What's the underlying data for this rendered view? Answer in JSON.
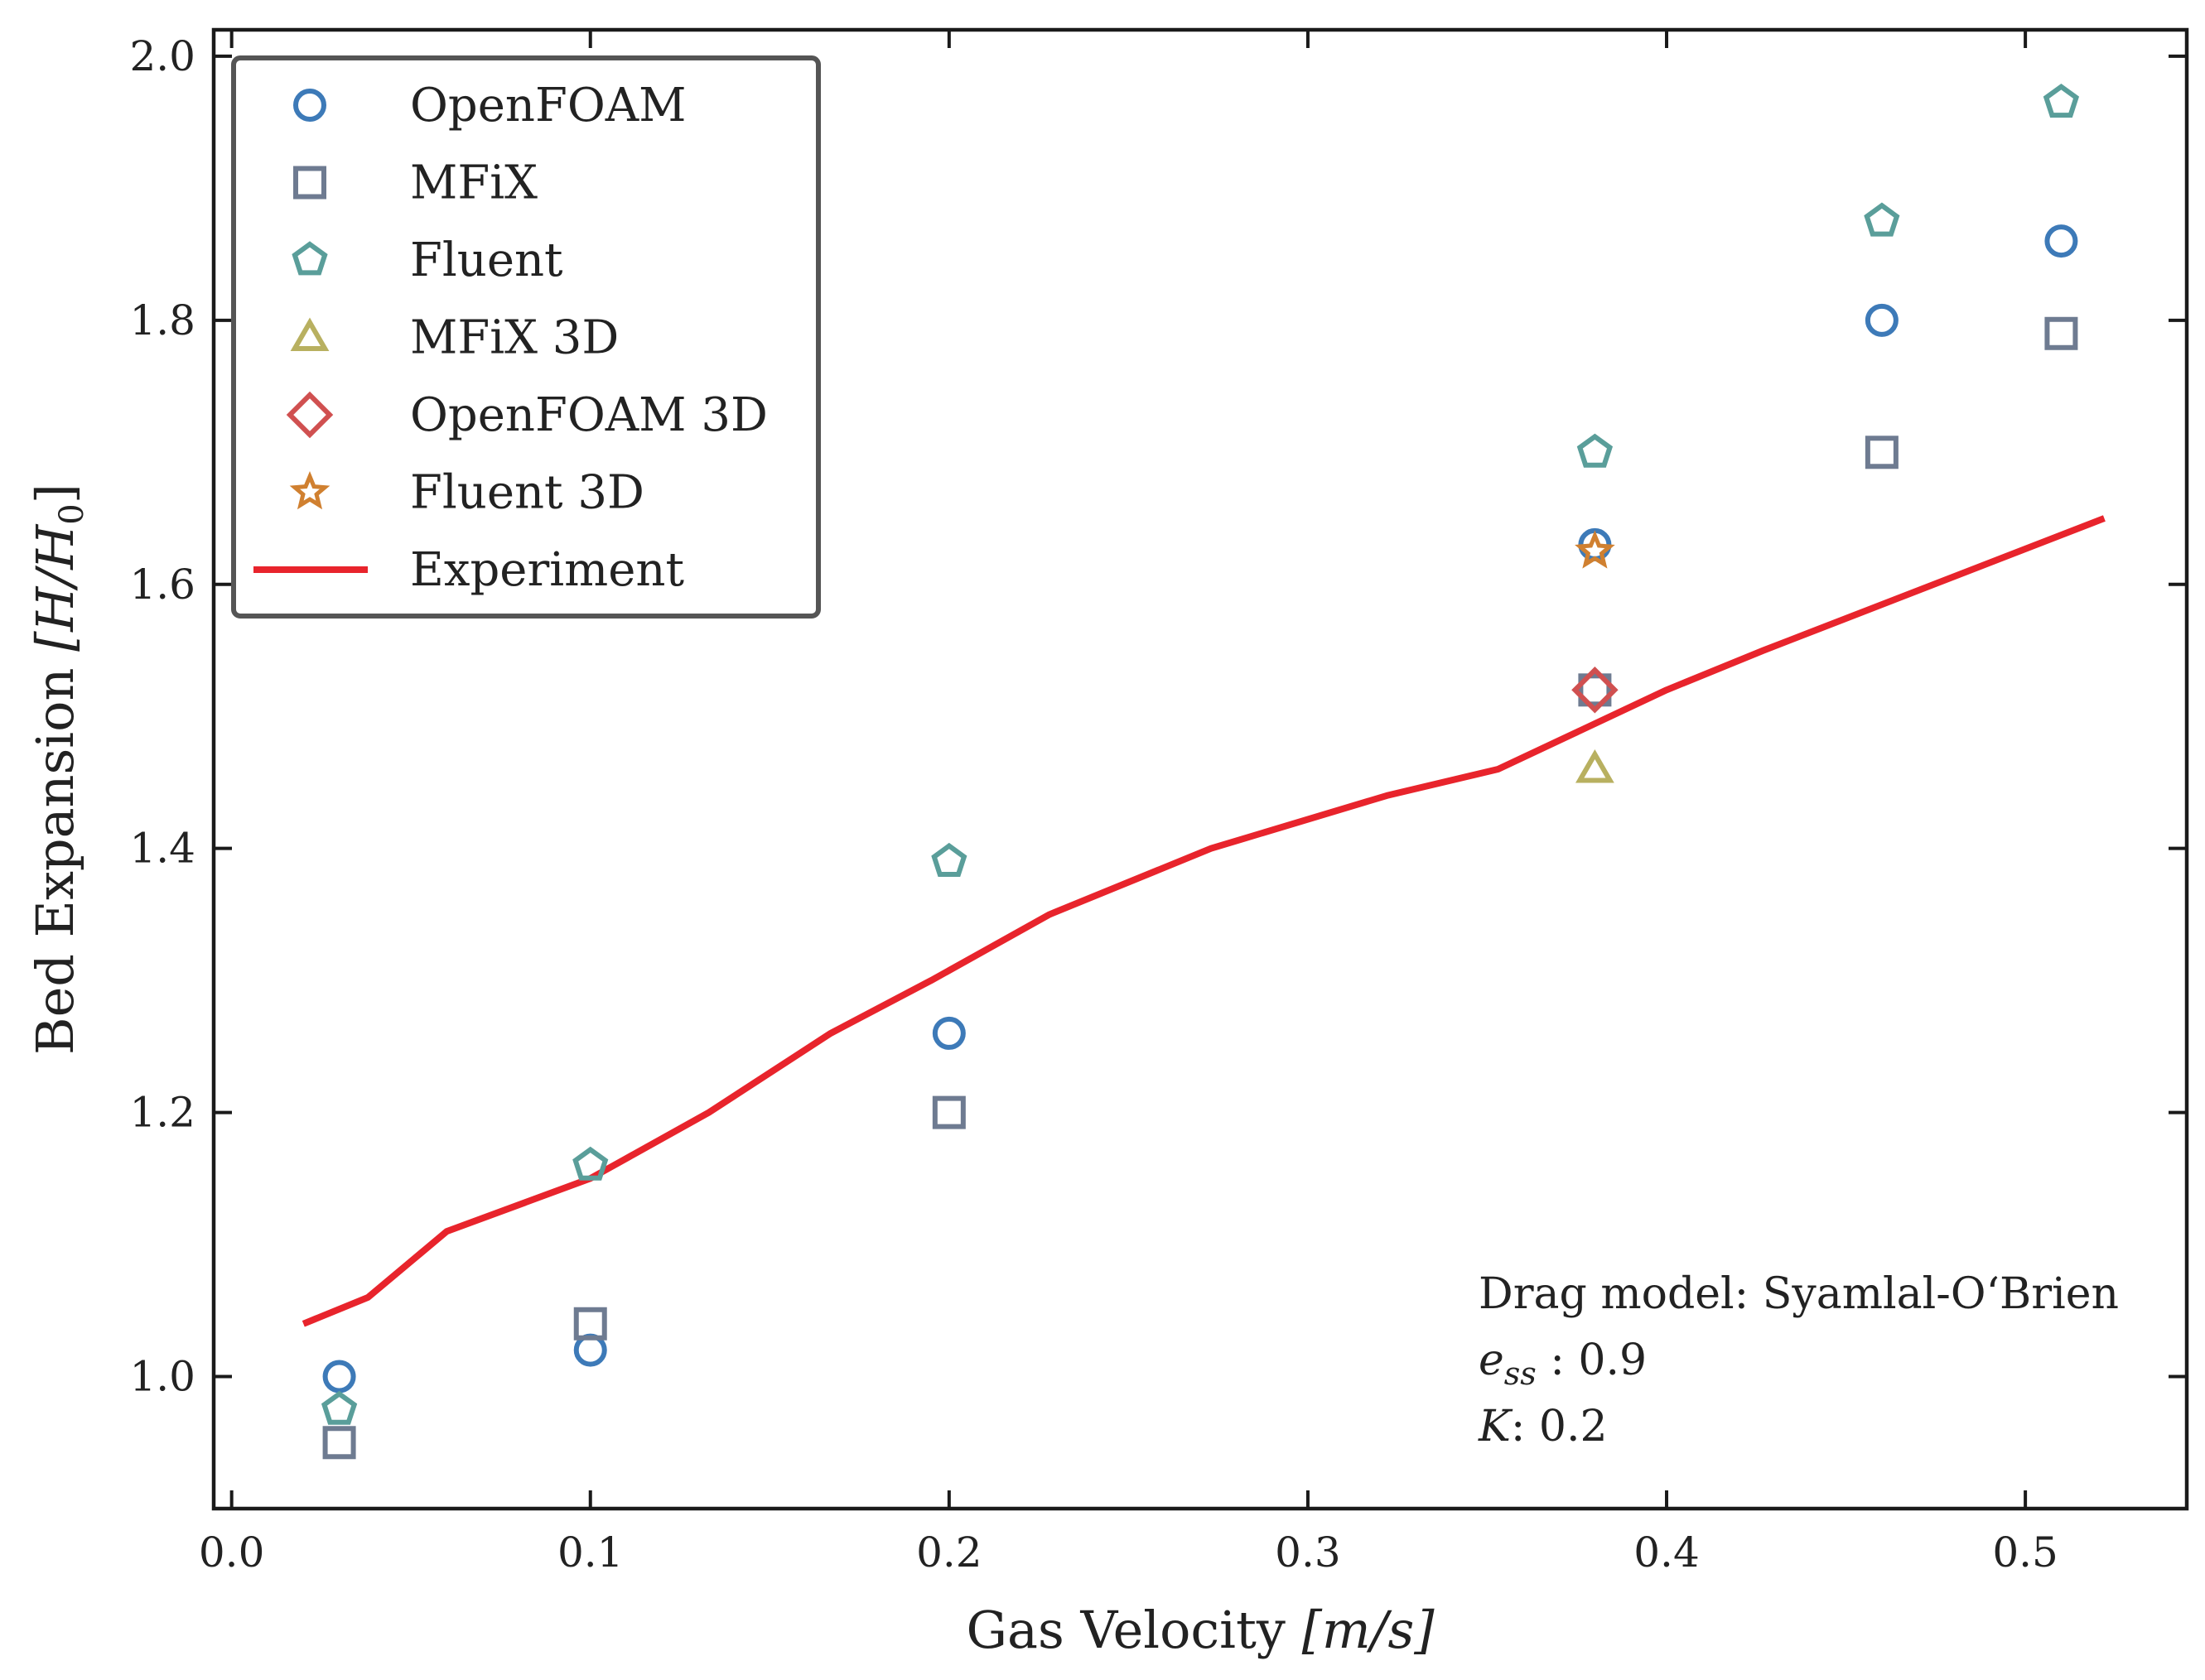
{
  "chart_data": {
    "type": "scatter",
    "title": "",
    "xlabel": "Gas Velocity [m/s]",
    "ylabel": "Bed Expansion [H/H0]",
    "xlabel_parts": {
      "text": "Gas Velocity ",
      "unit": "[m/s]"
    },
    "ylabel_parts": {
      "text": "Bed Expansion ",
      "unit": "[H/H",
      "sub": "0",
      "close": "]"
    },
    "xlim": [
      -0.005,
      0.545
    ],
    "ylim": [
      0.9,
      2.02
    ],
    "xticks": [
      0.0,
      0.1,
      0.2,
      0.3,
      0.4,
      0.5
    ],
    "xtick_labels": [
      "0.0",
      "0.1",
      "0.2",
      "0.3",
      "0.4",
      "0.5"
    ],
    "yticks": [
      1.0,
      1.2,
      1.4,
      1.6,
      1.8,
      2.0
    ],
    "ytick_labels": [
      "1.0",
      "1.2",
      "1.4",
      "1.6",
      "1.8",
      "2.0"
    ],
    "legend_position": "top-left",
    "series": [
      {
        "name": "OpenFOAM",
        "marker": "circle",
        "color": "#3d7ab8",
        "x": [
          0.03,
          0.1,
          0.2,
          0.38,
          0.46,
          0.51
        ],
        "y": [
          1.0,
          1.02,
          1.26,
          1.63,
          1.8,
          1.86
        ]
      },
      {
        "name": "MFiX",
        "marker": "square",
        "color": "#6e7b91",
        "x": [
          0.03,
          0.1,
          0.2,
          0.38,
          0.46,
          0.51
        ],
        "y": [
          0.95,
          1.04,
          1.2,
          1.52,
          1.7,
          1.79
        ]
      },
      {
        "name": "Fluent",
        "marker": "pentagon",
        "color": "#5a9e9a",
        "x": [
          0.03,
          0.1,
          0.2,
          0.38,
          0.46,
          0.51
        ],
        "y": [
          0.975,
          1.16,
          1.39,
          1.7,
          1.875,
          1.965
        ]
      },
      {
        "name": "MFiX 3D",
        "marker": "triangle",
        "color": "#b8b060",
        "x": [
          0.38
        ],
        "y": [
          1.46
        ]
      },
      {
        "name": "OpenFOAM 3D",
        "marker": "diamond",
        "color": "#d05050",
        "x": [
          0.38
        ],
        "y": [
          1.52
        ]
      },
      {
        "name": "Fluent 3D",
        "marker": "star",
        "color": "#d08030",
        "x": [
          0.38
        ],
        "y": [
          1.625
        ]
      },
      {
        "name": "Experiment",
        "marker": "line",
        "color": "#e8242c",
        "x": [
          0.02,
          0.038,
          0.06,
          0.1,
          0.133,
          0.167,
          0.195,
          0.228,
          0.273,
          0.322,
          0.353,
          0.4,
          0.427,
          0.522
        ],
        "y": [
          1.04,
          1.06,
          1.11,
          1.15,
          1.2,
          1.26,
          1.3,
          1.35,
          1.4,
          1.44,
          1.46,
          1.52,
          1.55,
          1.65
        ]
      }
    ],
    "annotations": {
      "line1": "Drag model: Syamlal-O‘Brien",
      "line2_symbol": "e",
      "line2_sub": "ss",
      "line2_value": " : 0.9",
      "line3_symbol": "K",
      "line3_value": ": 0.2"
    }
  }
}
